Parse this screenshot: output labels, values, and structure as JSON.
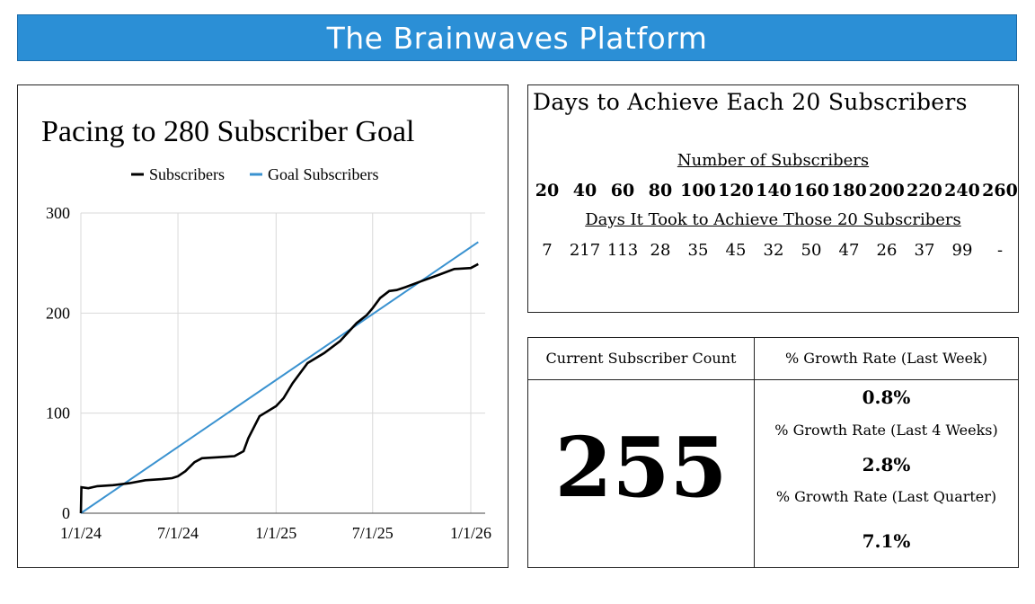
{
  "header": {
    "title": "The Brainwaves Platform"
  },
  "chart_data": {
    "type": "line",
    "title": "Pacing to 280 Subscriber Goal",
    "xlabel": "",
    "ylabel": "",
    "ylim": [
      0,
      300
    ],
    "y_ticks": [
      "0",
      "100",
      "200",
      "300"
    ],
    "x_ticks": [
      "1/1/24",
      "7/1/24",
      "1/1/25",
      "7/1/25",
      "1/1/26"
    ],
    "legend": "top",
    "grid": true,
    "series": [
      {
        "name": "Subscribers",
        "color": "#000000",
        "x": [
          "2024-01-01",
          "2024-01-02",
          "2024-01-15",
          "2024-02-01",
          "2024-03-01",
          "2024-04-01",
          "2024-05-01",
          "2024-06-01",
          "2024-06-20",
          "2024-07-01",
          "2024-07-15",
          "2024-08-01",
          "2024-08-15",
          "2024-09-15",
          "2024-10-15",
          "2024-11-01",
          "2024-11-10",
          "2024-12-01",
          "2025-01-01",
          "2025-01-15",
          "2025-02-01",
          "2025-03-01",
          "2025-04-01",
          "2025-05-01",
          "2025-06-01",
          "2025-06-20",
          "2025-07-01",
          "2025-07-15",
          "2025-08-01",
          "2025-08-15",
          "2025-09-01",
          "2025-10-01",
          "2025-11-01",
          "2025-12-01",
          "2026-01-01",
          "2026-01-15"
        ],
        "values": [
          0,
          26,
          25,
          27,
          28,
          30,
          33,
          34,
          35,
          37,
          42,
          51,
          55,
          56,
          57,
          62,
          75,
          97,
          107,
          115,
          130,
          150,
          160,
          172,
          190,
          198,
          205,
          215,
          222,
          223,
          226,
          232,
          238,
          244,
          245,
          249
        ]
      },
      {
        "name": "Goal Subscribers",
        "color": "#3a92d0",
        "x": [
          "2024-01-01",
          "2026-01-15"
        ],
        "values": [
          0,
          271
        ]
      }
    ]
  },
  "days_panel": {
    "title": "Days to Achieve Each 20 Subscribers",
    "subscribers_heading": "Number of Subscribers",
    "days_heading": "Days It Took to Achieve Those 20 Subscribers",
    "milestones": [
      "20",
      "40",
      "60",
      "80",
      "100",
      "120",
      "140",
      "160",
      "180",
      "200",
      "220",
      "240",
      "260"
    ],
    "days": [
      "7",
      "217",
      "113",
      "28",
      "35",
      "45",
      "32",
      "50",
      "47",
      "26",
      "37",
      "99",
      "-"
    ]
  },
  "stats": {
    "current_label": "Current Subscriber Count",
    "current_value": "255",
    "week_label": "% Growth Rate (Last Week)",
    "week_value": "0.8%",
    "four_weeks_label": "% Growth Rate (Last 4 Weeks)",
    "four_weeks_value": "2.8%",
    "quarter_label": "% Growth Rate (Last Quarter)",
    "quarter_value": "7.1%"
  }
}
